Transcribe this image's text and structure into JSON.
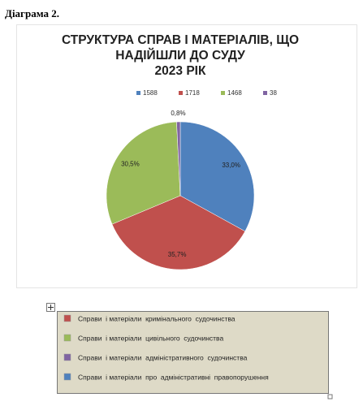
{
  "header": {
    "title": "Діаграма 2."
  },
  "chart_data": {
    "type": "pie",
    "title": [
      "СТРУКТУРА СПРАВ І МАТЕРІАЛІВ, ЩО",
      "НАДІЙШЛИ ДО СУДУ",
      "2023 РІК"
    ],
    "categories": [
      "1588",
      "1718",
      "1468",
      "38"
    ],
    "values": [
      33.0,
      35.7,
      30.5,
      0.8
    ],
    "value_labels": [
      "33,0%",
      "35,7%",
      "30,5%",
      "0,8%"
    ],
    "colors": [
      "#4f81bd",
      "#c0504d",
      "#9bbb59",
      "#8064a2"
    ],
    "legend": "top"
  },
  "legend_table": {
    "items": [
      {
        "label": "Справи  і матеріали  кримінального  судочинства",
        "color": "#c0504d"
      },
      {
        "label": "Справи  і матеріали  цивільного  судочинства",
        "color": "#9bbb59"
      },
      {
        "label": "Справи  і матеріали  адміністративного  судочинства",
        "color": "#8064a2"
      },
      {
        "label": "Справи  і матеріали  про  адміністративні  правопорушення",
        "color": "#4f81bd"
      }
    ]
  }
}
